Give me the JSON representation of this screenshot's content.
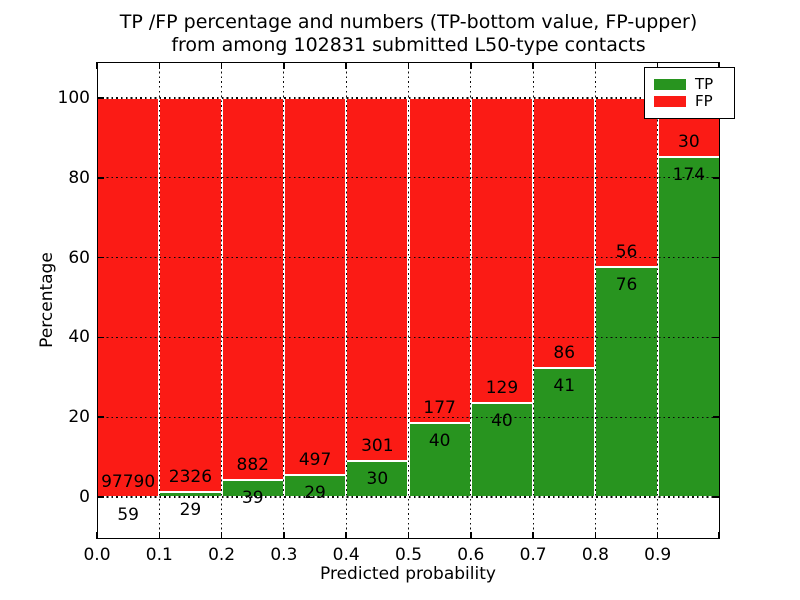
{
  "chart_data": {
    "type": "bar",
    "stacked": true,
    "title_line1": "TP /FP percentage and numbers (TP-bottom value, FP-upper)",
    "title_line2": "from among 102831 submitted L50-type contacts",
    "xlabel": "Predicted probability",
    "ylabel": "Percentage",
    "x_tick_labels": [
      "0.0",
      "0.1",
      "0.2",
      "0.3",
      "0.4",
      "0.5",
      "0.6",
      "0.7",
      "0.8",
      "0.9"
    ],
    "y_tick_values": [
      0,
      20,
      40,
      60,
      80,
      100
    ],
    "xlim": [
      0.0,
      1.0
    ],
    "ylim": [
      -10,
      109
    ],
    "grid_style": "dotted",
    "bar_bin_width": 0.1,
    "bar_total_percent": 100,
    "categories": [
      "0.0-0.1",
      "0.1-0.2",
      "0.2-0.3",
      "0.3-0.4",
      "0.4-0.5",
      "0.5-0.6",
      "0.6-0.7",
      "0.7-0.8",
      "0.8-0.9",
      "0.9-1.0"
    ],
    "series": [
      {
        "name": "TP",
        "color": "#28941f",
        "counts": [
          59,
          29,
          39,
          29,
          30,
          40,
          40,
          41,
          76,
          174
        ]
      },
      {
        "name": "FP",
        "color": "#fb1b15",
        "counts": [
          97790,
          2326,
          882,
          497,
          301,
          177,
          129,
          86,
          56,
          30
        ]
      }
    ],
    "legend_position": "upper right",
    "submitted_total": 102831
  }
}
